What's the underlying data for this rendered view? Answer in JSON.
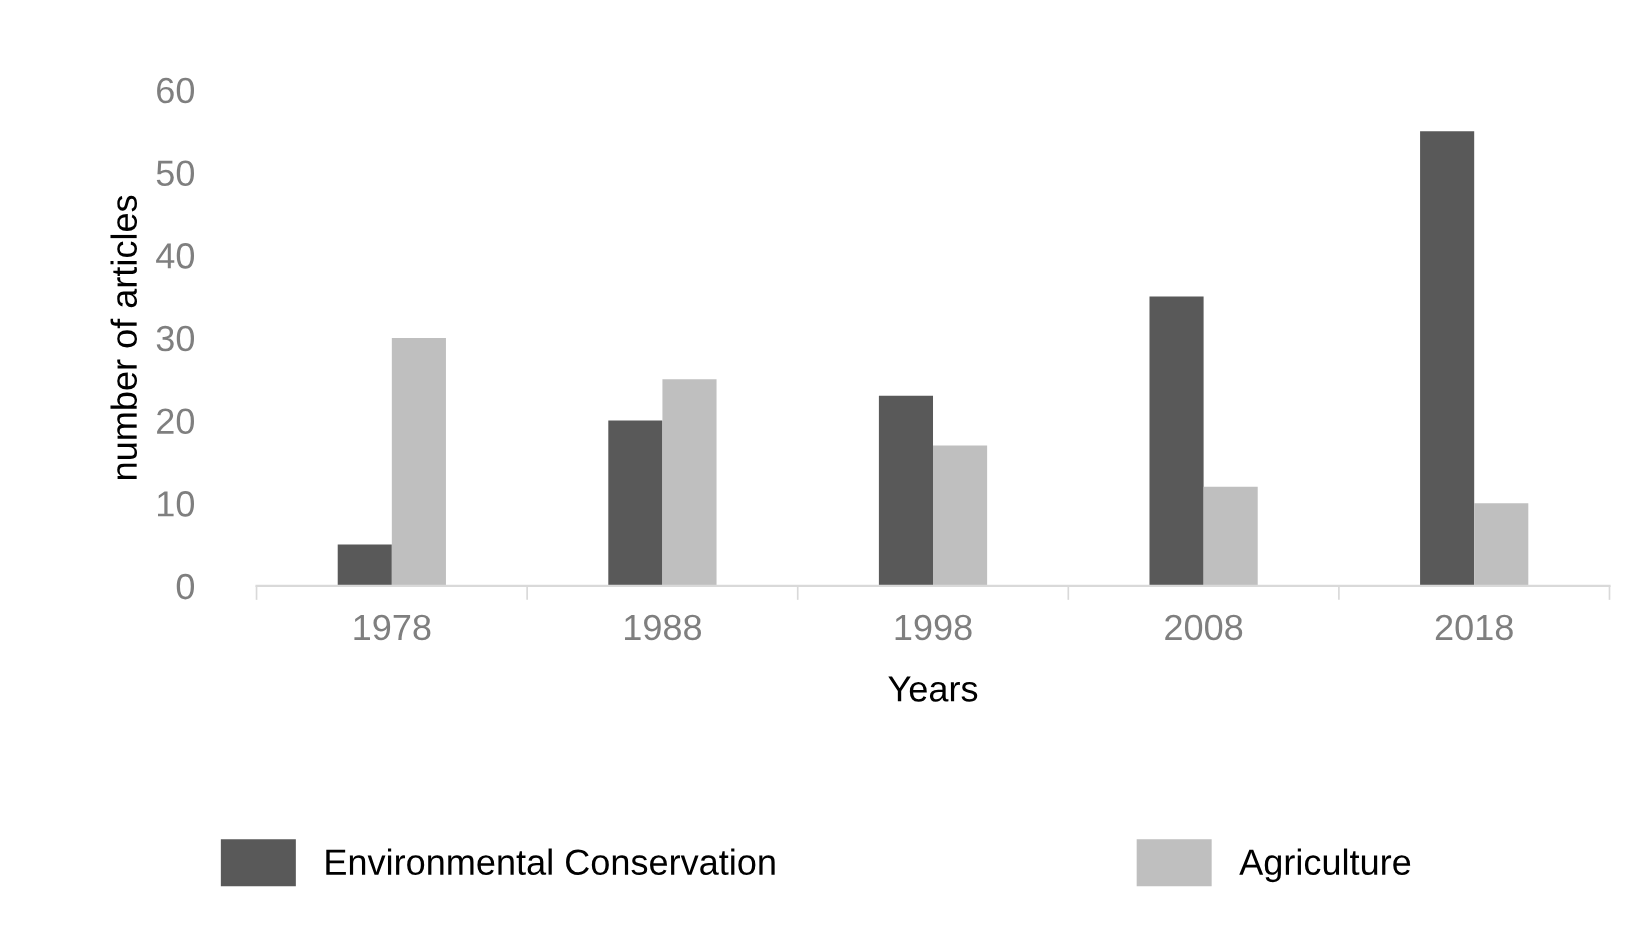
{
  "chart_data": {
    "type": "bar",
    "xlabel": "Years",
    "ylabel": "number of articles",
    "categories": [
      "1978",
      "1988",
      "1998",
      "2008",
      "2018"
    ],
    "series": [
      {
        "name": "Environmental Conservation",
        "color": "#595959",
        "values": [
          5,
          20,
          23,
          35,
          55
        ]
      },
      {
        "name": "Agriculture",
        "color": "#bfbfbf",
        "values": [
          30,
          25,
          17,
          12,
          10
        ]
      }
    ],
    "ylim": [
      0,
      60
    ],
    "yticks": [
      0,
      10,
      20,
      30,
      40,
      50,
      60
    ],
    "grid": false,
    "legend": "bottom"
  }
}
